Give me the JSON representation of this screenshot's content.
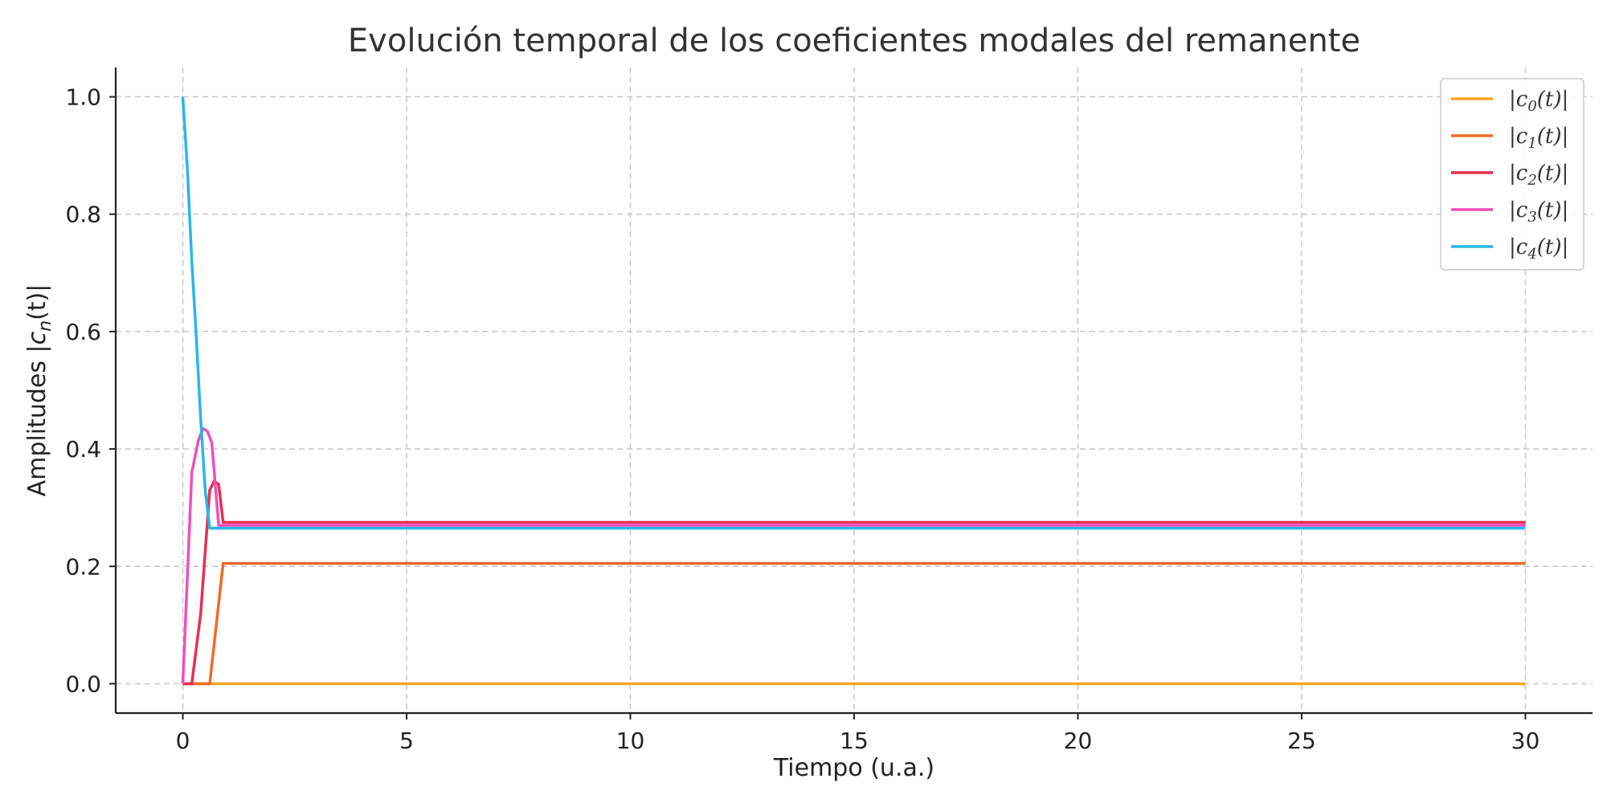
{
  "chart_data": {
    "type": "line",
    "title": "Evolución temporal de los coeficientes modales del remanente",
    "xlabel": "Tiempo (u.a.)",
    "ylabel_text": "Amplitudes |",
    "ylabel_math": "c",
    "ylabel_sub": "n",
    "ylabel_tail": "(t)|",
    "xlim": [
      -1.5,
      31.5
    ],
    "ylim": [
      -0.05,
      1.05
    ],
    "xticks": [
      0,
      5,
      10,
      15,
      20,
      25,
      30
    ],
    "xtick_labels": [
      "0",
      "5",
      "10",
      "15",
      "20",
      "25",
      "30"
    ],
    "yticks": [
      0.0,
      0.2,
      0.4,
      0.6,
      0.8,
      1.0
    ],
    "ytick_labels": [
      "0.0",
      "0.2",
      "0.4",
      "0.6",
      "0.8",
      "1.0"
    ],
    "grid": true,
    "legend_position": "top-right",
    "series": [
      {
        "name": "|c0(t)|",
        "legend_sub": "0",
        "color": "#f5a623",
        "x": [
          0,
          30
        ],
        "y": [
          0,
          0
        ]
      },
      {
        "name": "|c1(t)|",
        "legend_sub": "1",
        "color": "#f06a28",
        "x": [
          0,
          0.6,
          0.9,
          30
        ],
        "y": [
          0,
          0,
          0.205,
          0.205
        ]
      },
      {
        "name": "|c2(t)|",
        "legend_sub": "2",
        "color": "#e8304f",
        "x": [
          0,
          0.2,
          0.4,
          0.6,
          0.7,
          0.8,
          0.9,
          30
        ],
        "y": [
          0,
          0,
          0.12,
          0.33,
          0.345,
          0.34,
          0.275,
          0.275
        ]
      },
      {
        "name": "|c3(t)|",
        "legend_sub": "3",
        "color": "#f04fbc",
        "x": [
          0,
          0.2,
          0.35,
          0.45,
          0.55,
          0.65,
          0.8,
          30
        ],
        "y": [
          0,
          0.36,
          0.415,
          0.435,
          0.43,
          0.41,
          0.27,
          0.27
        ]
      },
      {
        "name": "|c4(t)|",
        "legend_sub": "4",
        "color": "#29b6e8",
        "x": [
          0,
          0.1,
          0.2,
          0.3,
          0.4,
          0.5,
          0.6,
          30
        ],
        "y": [
          1.0,
          0.88,
          0.72,
          0.59,
          0.45,
          0.33,
          0.265,
          0.265
        ]
      }
    ]
  }
}
